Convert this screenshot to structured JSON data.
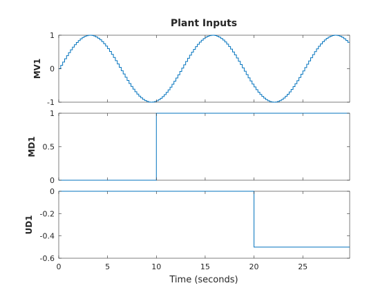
{
  "chart_data": {
    "type": "line",
    "title": "Plant Inputs",
    "xlabel": "Time (seconds)",
    "xlim": [
      0,
      29.8
    ],
    "x_ticks": [
      "0",
      "5",
      "10",
      "15",
      "20",
      "25"
    ],
    "x_tick_values": [
      0,
      5,
      10,
      15,
      20,
      25
    ],
    "line_color": "#0072BD",
    "grid": false,
    "subplots": [
      {
        "ylabel": "MV1",
        "ylim": [
          -1,
          1
        ],
        "y_ticks": [
          "1",
          "0",
          "-1"
        ],
        "y_tick_values": [
          1,
          0,
          -1
        ],
        "series": [
          {
            "function": "sine",
            "amplitude": 1,
            "period": 12.566,
            "sample_time": 0.2
          }
        ]
      },
      {
        "ylabel": "MD1",
        "ylim": [
          0,
          1
        ],
        "y_ticks": [
          "1",
          "0.5",
          "0"
        ],
        "y_tick_values": [
          1,
          0.5,
          0
        ],
        "series": [
          {
            "x": [
              0,
              10,
              10,
              29.8
            ],
            "y": [
              0,
              0,
              1,
              1
            ]
          }
        ]
      },
      {
        "ylabel": "UD1",
        "ylim": [
          -0.6,
          0
        ],
        "y_ticks": [
          "0",
          "-0.2",
          "-0.4",
          "-0.6"
        ],
        "y_tick_values": [
          0,
          -0.2,
          -0.4,
          -0.6
        ],
        "series": [
          {
            "x": [
              0,
              20,
              20,
              29.8
            ],
            "y": [
              0,
              0,
              -0.5,
              -0.5
            ]
          }
        ]
      }
    ]
  }
}
